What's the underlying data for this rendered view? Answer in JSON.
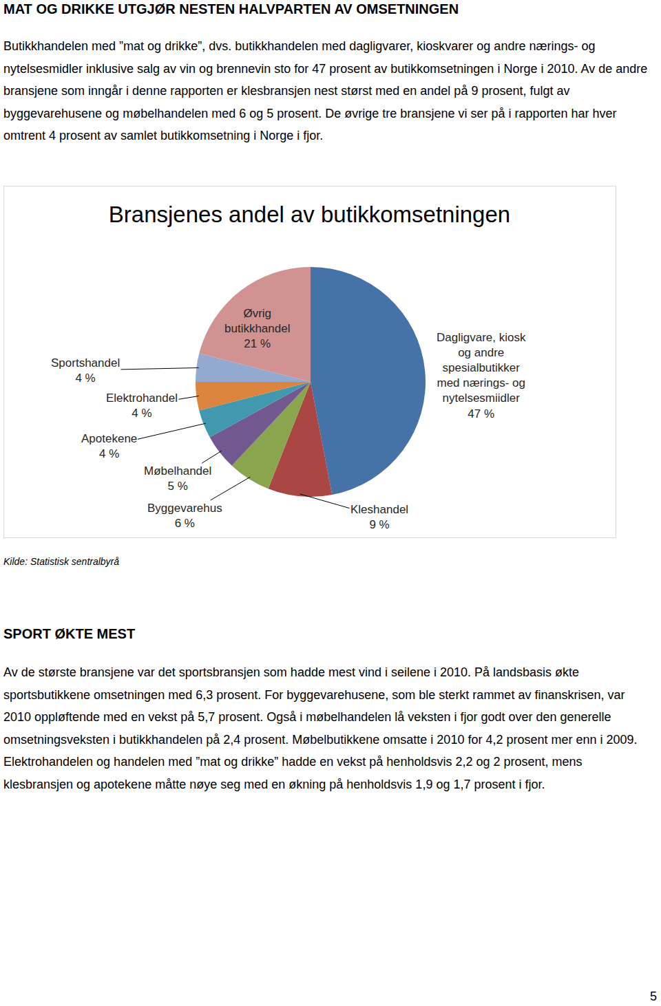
{
  "heading": "MAT OG DRIKKE UTGJØR NESTEN HALVPARTEN AV OMSETNINGEN",
  "paragraph": "Butikkhandelen med ”mat og drikke”, dvs. butikkhandelen med dagligvarer, kioskvarer og andre nærings- og nytelsesmidler inklusive salg av vin og brennevin sto for 47 prosent av butikkomsetningen i Norge i 2010. Av de andre bransjene som inngår i denne rapporten er klesbransjen nest størst med en andel på 9 prosent, fulgt av byggevarehusene og møbelhandelen med 6 og 5 prosent. De øvrige tre bransjene vi ser på i rapporten har hver omtrent 4 prosent av samlet butikkomsetning i Norge i fjor.",
  "chart_data": {
    "type": "pie",
    "title": "Bransjenes andel av butikkomsetningen",
    "categories": [
      "Dagligvare, kiosk og andre spesialbutikker med nærings- og nytelsesmiidler",
      "Kleshandel",
      "Byggevarehus",
      "Møbelhandel",
      "Apotekene",
      "Elektrohandel",
      "Sportshandel",
      "Øvrig butikkhandel"
    ],
    "values": [
      47,
      9,
      6,
      5,
      4,
      4,
      4,
      21
    ],
    "value_labels": [
      "47 %",
      "9 %",
      "6 %",
      "5 %",
      "4 %",
      "4 %",
      "4 %",
      "21 %"
    ],
    "colors": [
      "#4572A7",
      "#AA4643",
      "#89A54E",
      "#71588F",
      "#4198AF",
      "#DB843D",
      "#93A9CF",
      "#D19392"
    ],
    "data_labels": true
  },
  "source": "Kilde: Statistisk sentralbyrå",
  "section": {
    "heading": "SPORT ØKTE MEST",
    "paragraph": "Av de største bransjene var det sportsbransjen som hadde mest vind i seilene i 2010. På landsbasis økte sportsbutikkene omsetningen med 6,3 prosent.  For byggevarehusene, som ble sterkt rammet av finanskrisen, var 2010 oppløftende med en vekst på 5,7 prosent. Også i møbelhandelen lå veksten i fjor godt over den generelle omsetningsveksten i butikkhandelen på 2,4 prosent. Møbelbutikkene omsatte i 2010 for 4,2 prosent mer enn i 2009. Elektrohandelen og handelen med ”mat og drikke” hadde en vekst på henholdsvis 2,2 og 2 prosent, mens klesbransjen og apotekene måtte nøye seg med en økning på henholdsvis 1,9 og 1,7 prosent i fjor."
  },
  "page_number": 5
}
